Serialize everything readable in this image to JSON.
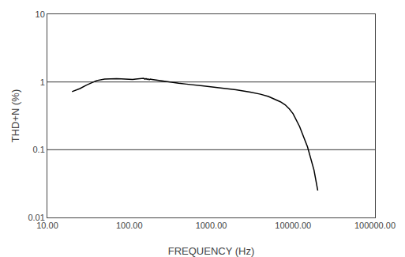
{
  "chart_data": {
    "type": "line",
    "xlabel": "FREQUENCY (Hz)",
    "ylabel": "THD+N (%)",
    "log": true,
    "grid": false,
    "xlim": [
      10,
      100000
    ],
    "ylim": [
      0.01,
      10
    ],
    "xticks": [
      {
        "value": 10,
        "label": "10.00"
      },
      {
        "value": 100,
        "label": "100.00"
      },
      {
        "value": 1000,
        "label": "1000.00"
      },
      {
        "value": 10000,
        "label": "10000.00"
      },
      {
        "value": 100000,
        "label": "100000.00"
      }
    ],
    "yticks": [
      0.01,
      0.1,
      1,
      10
    ],
    "x": [
      20,
      25,
      30,
      35,
      40,
      50,
      60,
      70,
      80,
      90,
      100,
      110,
      120,
      130,
      140,
      150,
      155,
      160,
      165,
      170,
      175,
      180,
      190,
      200,
      220,
      250,
      300,
      400,
      500,
      700,
      1000,
      1500,
      2000,
      3000,
      4000,
      5000,
      6000,
      7000,
      8000,
      9000,
      10000,
      12000,
      15000,
      18000,
      20000
    ],
    "values": [
      0.72,
      0.8,
      0.9,
      0.98,
      1.05,
      1.1,
      1.12,
      1.12,
      1.11,
      1.1,
      1.09,
      1.09,
      1.1,
      1.11,
      1.12,
      1.13,
      1.1,
      1.12,
      1.09,
      1.11,
      1.08,
      1.1,
      1.09,
      1.08,
      1.06,
      1.03,
      1.0,
      0.96,
      0.93,
      0.89,
      0.84,
      0.8,
      0.77,
      0.71,
      0.66,
      0.61,
      0.56,
      0.51,
      0.46,
      0.4,
      0.34,
      0.22,
      0.11,
      0.05,
      0.025
    ],
    "color": "#000000",
    "hlines": {
      "values": [
        1.0,
        0.1
      ],
      "color": "#000000"
    }
  }
}
